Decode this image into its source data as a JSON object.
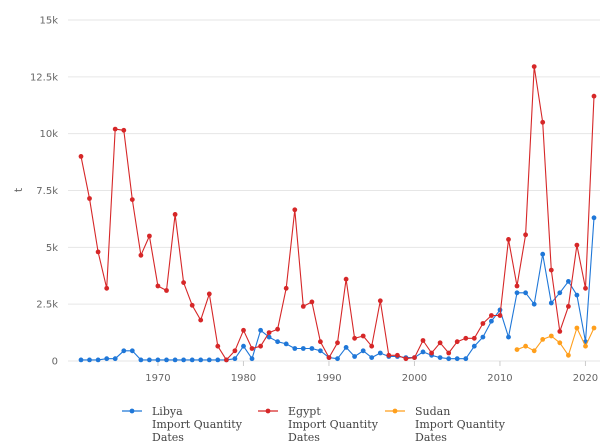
{
  "chart_data": {
    "type": "line",
    "title": "",
    "xlabel": "",
    "ylabel": "t",
    "xlim": [
      1961,
      2021
    ],
    "ylim": [
      0,
      15000
    ],
    "yticks": [
      0,
      2500,
      5000,
      7500,
      10000,
      12500,
      15000
    ],
    "ytick_labels": [
      "0",
      "2.5k",
      "5k",
      "7.5k",
      "10k",
      "12.5k",
      "15k"
    ],
    "xticks": [
      1970,
      1980,
      1990,
      2000,
      2010,
      2020
    ],
    "xtick_labels": [
      "1970",
      "1980",
      "1990",
      "2000",
      "2010",
      "2020"
    ],
    "grid": "horizontal",
    "legend_position": "bottom",
    "series": [
      {
        "name": "Libya Import Quantity Dates",
        "legend_lines": [
          "Libya",
          "Import Quantity",
          "Dates"
        ],
        "color": "#1f77d8",
        "x": [
          1961,
          1962,
          1963,
          1964,
          1965,
          1966,
          1967,
          1968,
          1969,
          1970,
          1971,
          1972,
          1973,
          1974,
          1975,
          1976,
          1977,
          1978,
          1979,
          1980,
          1981,
          1982,
          1983,
          1984,
          1985,
          1986,
          1987,
          1988,
          1989,
          1990,
          1991,
          1992,
          1993,
          1994,
          1995,
          1996,
          1997,
          1998,
          1999,
          2000,
          2001,
          2002,
          2003,
          2004,
          2005,
          2006,
          2007,
          2008,
          2009,
          2010,
          2011,
          2012,
          2013,
          2014,
          2015,
          2016,
          2017,
          2018,
          2019,
          2020,
          2021
        ],
        "y": [
          50,
          50,
          50,
          100,
          100,
          450,
          450,
          50,
          50,
          50,
          50,
          50,
          50,
          50,
          50,
          50,
          50,
          50,
          100,
          650,
          100,
          1350,
          1050,
          850,
          750,
          550,
          550,
          550,
          450,
          150,
          100,
          600,
          200,
          450,
          150,
          350,
          200,
          200,
          150,
          150,
          400,
          250,
          150,
          100,
          100,
          100,
          650,
          1050,
          1750,
          2250,
          1050,
          3000,
          3000,
          2500,
          4700,
          2550,
          3000,
          3500,
          2900,
          850,
          6300
        ]
      },
      {
        "name": "Egypt Import Quantity Dates",
        "legend_lines": [
          "Egypt",
          "Import Quantity",
          "Dates"
        ],
        "color": "#d62728",
        "x": [
          1961,
          1962,
          1963,
          1964,
          1965,
          1966,
          1967,
          1968,
          1969,
          1970,
          1971,
          1972,
          1973,
          1974,
          1975,
          1976,
          1977,
          1978,
          1979,
          1980,
          1981,
          1982,
          1983,
          1984,
          1985,
          1986,
          1987,
          1988,
          1989,
          1990,
          1991,
          1992,
          1993,
          1994,
          1995,
          1996,
          1997,
          1998,
          1999,
          2000,
          2001,
          2002,
          2003,
          2004,
          2005,
          2006,
          2007,
          2008,
          2009,
          2010,
          2011,
          2012,
          2013,
          2014,
          2015,
          2016,
          2017,
          2018,
          2019,
          2020,
          2021
        ],
        "y": [
          9000,
          7150,
          4800,
          3200,
          10200,
          10150,
          7100,
          4650,
          5500,
          3300,
          3100,
          6450,
          3450,
          2450,
          1800,
          2950,
          650,
          50,
          450,
          1350,
          550,
          650,
          1250,
          1400,
          3200,
          6650,
          2400,
          2600,
          850,
          150,
          800,
          3600,
          1000,
          1100,
          650,
          2650,
          250,
          250,
          100,
          150,
          900,
          350,
          800,
          350,
          850,
          1000,
          1000,
          1650,
          2000,
          2000,
          5350,
          3300,
          5550,
          12950,
          10500,
          4000,
          1300,
          2400,
          5100,
          3200,
          11650
        ]
      },
      {
        "name": "Sudan Import Quantity Dates",
        "legend_lines": [
          "Sudan",
          "Import Quantity",
          "Dates"
        ],
        "color": "#ff9f1c",
        "x": [
          2012,
          2013,
          2014,
          2015,
          2016,
          2017,
          2018,
          2019,
          2020,
          2021
        ],
        "y": [
          500,
          650,
          450,
          950,
          1100,
          800,
          250,
          1450,
          650,
          1450
        ]
      }
    ]
  }
}
